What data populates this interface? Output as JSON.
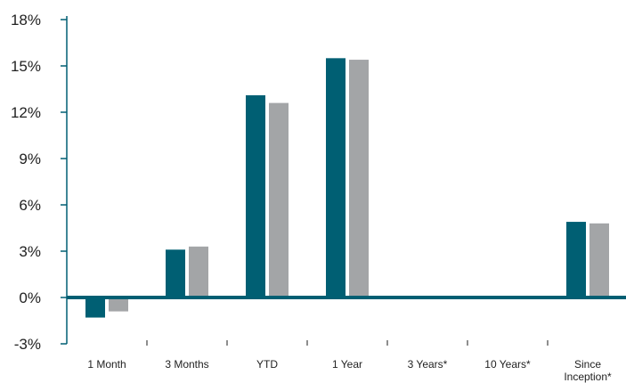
{
  "chart_data": {
    "type": "bar",
    "categories": [
      "1 Month",
      "3 Months",
      "YTD",
      "1 Year",
      "3 Years*",
      "10 Years*",
      "Since Inception*"
    ],
    "category_lines": [
      [
        "1 Month"
      ],
      [
        "3 Months"
      ],
      [
        "YTD"
      ],
      [
        "1 Year"
      ],
      [
        "3 Years*"
      ],
      [
        "10 Years*"
      ],
      [
        "Since",
        "Inception*"
      ]
    ],
    "series": [
      {
        "values": [
          -1.3,
          3.1,
          13.1,
          15.5,
          null,
          null,
          4.9
        ],
        "color": "#005f73"
      },
      {
        "values": [
          -0.9,
          3.3,
          12.6,
          15.4,
          null,
          null,
          4.8
        ],
        "color": "#a3a5a7"
      }
    ],
    "ylim": [
      -3,
      18
    ],
    "yticks": [
      -3,
      0,
      3,
      6,
      9,
      12,
      15,
      18
    ],
    "ytick_labels": [
      "-3%",
      "0%",
      "3%",
      "6%",
      "9%",
      "12%",
      "15%",
      "18%"
    ],
    "zero_line_color": "#005f73",
    "axis_color": "#005f73",
    "grid": false,
    "legend": "none"
  }
}
